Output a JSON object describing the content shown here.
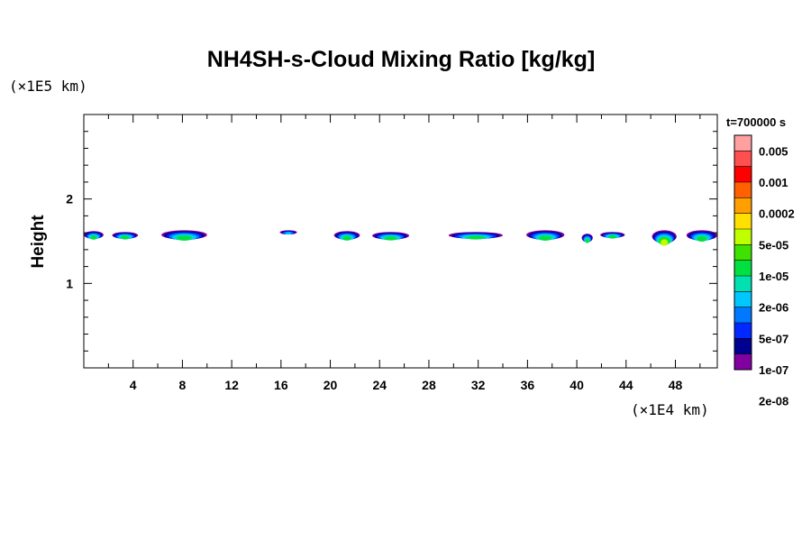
{
  "chart_data": {
    "type": "heatmap",
    "title": "NH4SH-s-Cloud Mixing Ratio [kg/kg]",
    "ylabel": "Height",
    "x_unit_label": "(×1E4 km)",
    "y_unit_label": "(×1E5 km)",
    "time_label": "t=700000 s",
    "x_ticks": [
      "4",
      "8",
      "12",
      "16",
      "20",
      "24",
      "28",
      "32",
      "36",
      "40",
      "44",
      "48"
    ],
    "y_ticks": [
      "1",
      "2"
    ],
    "xlim": [
      0,
      51.4
    ],
    "ylim": [
      0,
      3.0
    ],
    "grid": false,
    "legend_placement": "right",
    "colorbar": {
      "labels": [
        "0.005",
        "0.001",
        "0.0002",
        "5e-05",
        "1e-05",
        "2e-06",
        "5e-07",
        "1e-07",
        "2e-08"
      ],
      "colors": [
        "#ffa0a0",
        "#ff5050",
        "#ff0000",
        "#ff6000",
        "#ffa000",
        "#ffe000",
        "#c0ff00",
        "#40e000",
        "#00e040",
        "#00e0b0",
        "#00c8ff",
        "#0078ff",
        "#0028ff",
        "#000090",
        "#8000a0"
      ]
    },
    "cloud_patches": [
      {
        "x_start": 0.0,
        "x_end": 1.6,
        "y_bottom": 1.53,
        "y_top": 1.62,
        "max_level": "5e-07"
      },
      {
        "x_start": 2.3,
        "x_end": 4.4,
        "y_bottom": 1.53,
        "y_top": 1.61,
        "max_level": "5e-07"
      },
      {
        "x_start": 6.3,
        "x_end": 10.0,
        "y_bottom": 1.52,
        "y_top": 1.63,
        "max_level": "5e-07"
      },
      {
        "x_start": 15.9,
        "x_end": 17.3,
        "y_bottom": 1.58,
        "y_top": 1.63,
        "max_level": "1e-07"
      },
      {
        "x_start": 20.3,
        "x_end": 22.4,
        "y_bottom": 1.52,
        "y_top": 1.62,
        "max_level": "5e-07"
      },
      {
        "x_start": 23.4,
        "x_end": 26.4,
        "y_bottom": 1.52,
        "y_top": 1.61,
        "max_level": "5e-07"
      },
      {
        "x_start": 29.6,
        "x_end": 34.0,
        "y_bottom": 1.53,
        "y_top": 1.61,
        "max_level": "5e-07"
      },
      {
        "x_start": 35.9,
        "x_end": 39.0,
        "y_bottom": 1.52,
        "y_top": 1.63,
        "max_level": "5e-07"
      },
      {
        "x_start": 40.4,
        "x_end": 41.3,
        "y_bottom": 1.49,
        "y_top": 1.59,
        "max_level": "5e-07"
      },
      {
        "x_start": 41.9,
        "x_end": 43.9,
        "y_bottom": 1.54,
        "y_top": 1.61,
        "max_level": "5e-07"
      },
      {
        "x_start": 46.1,
        "x_end": 48.1,
        "y_bottom": 1.48,
        "y_top": 1.63,
        "max_level": "2e-06"
      },
      {
        "x_start": 48.9,
        "x_end": 51.4,
        "y_bottom": 1.51,
        "y_top": 1.63,
        "max_level": "5e-07"
      }
    ]
  }
}
